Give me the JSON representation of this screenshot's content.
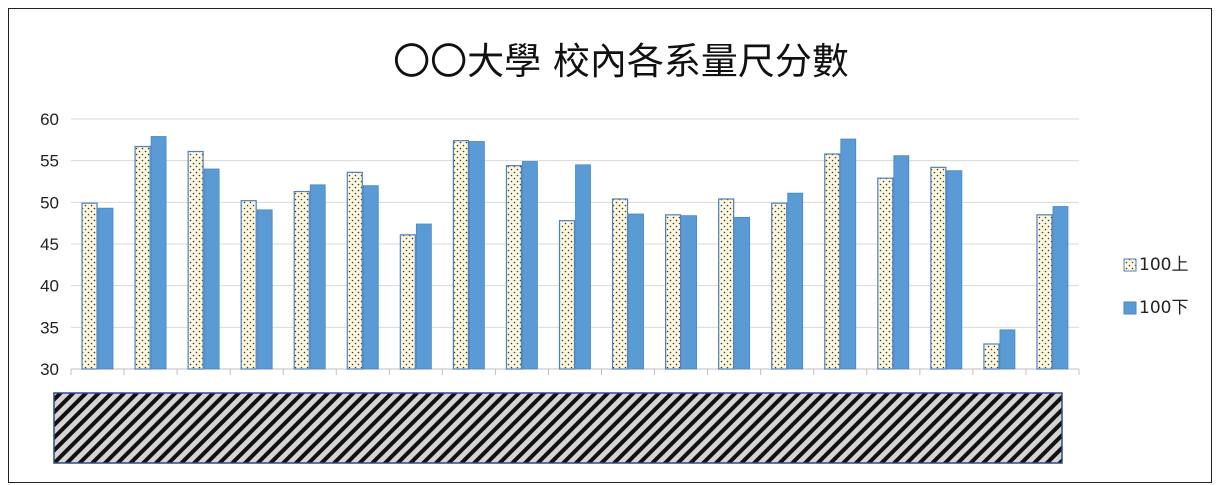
{
  "chart_data": {
    "type": "bar",
    "title": "〇〇大學 校內各系量尺分數",
    "xlabel": "",
    "ylabel": "",
    "ylim": [
      30,
      60
    ],
    "yticks": [
      30,
      35,
      40,
      45,
      50,
      55,
      60
    ],
    "grid": true,
    "legend_position": "right",
    "category_labels_obscured": true,
    "categories": [
      "",
      "",
      "",
      "",
      "",
      "",
      "",
      "",
      "",
      "",
      "",
      "",
      "",
      "",
      "",
      "",
      "",
      "",
      ""
    ],
    "series": [
      {
        "name": "100上",
        "pattern": "dotted",
        "color": "#fbf6dc",
        "values": [
          49.9,
          56.7,
          56.1,
          50.2,
          51.3,
          53.6,
          46.1,
          57.4,
          54.4,
          47.8,
          50.4,
          48.5,
          50.4,
          49.9,
          55.8,
          52.9,
          54.2,
          33.0,
          48.5
        ]
      },
      {
        "name": "100下",
        "pattern": "solid",
        "color": "#5b9bd5",
        "values": [
          49.3,
          57.9,
          54.0,
          49.1,
          52.1,
          52.0,
          47.4,
          57.3,
          54.9,
          54.5,
          48.6,
          48.4,
          48.2,
          51.1,
          57.6,
          55.6,
          53.8,
          34.7,
          49.5
        ]
      }
    ]
  }
}
